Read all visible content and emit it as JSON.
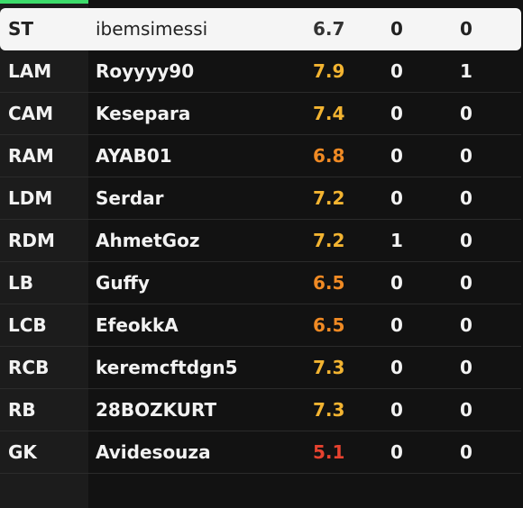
{
  "rating_colors": {
    "neutral_selected": "#333333",
    "yellow": "#f3b431",
    "orange": "#f08a24",
    "red": "#e5422f"
  },
  "accent_color": "#3ddc6b",
  "players": [
    {
      "position": "ST",
      "name": "ibemsimessi",
      "rating": "6.7",
      "goals": "0",
      "assists": "0",
      "rating_color": "#333333",
      "selected": true
    },
    {
      "position": "LAM",
      "name": "Royyyy90",
      "rating": "7.9",
      "goals": "0",
      "assists": "1",
      "rating_color": "#f3b431"
    },
    {
      "position": "CAM",
      "name": "Kesepara",
      "rating": "7.4",
      "goals": "0",
      "assists": "0",
      "rating_color": "#f3b431"
    },
    {
      "position": "RAM",
      "name": "AYAB01",
      "rating": "6.8",
      "goals": "0",
      "assists": "0",
      "rating_color": "#f08a24"
    },
    {
      "position": "LDM",
      "name": "Serdar",
      "rating": "7.2",
      "goals": "0",
      "assists": "0",
      "rating_color": "#f3b431"
    },
    {
      "position": "RDM",
      "name": "AhmetGoz",
      "rating": "7.2",
      "goals": "1",
      "assists": "0",
      "rating_color": "#f3b431"
    },
    {
      "position": "LB",
      "name": "Guffy",
      "rating": "6.5",
      "goals": "0",
      "assists": "0",
      "rating_color": "#f08a24"
    },
    {
      "position": "LCB",
      "name": "EfeokkA",
      "rating": "6.5",
      "goals": "0",
      "assists": "0",
      "rating_color": "#f08a24"
    },
    {
      "position": "RCB",
      "name": "keremcftdgn5",
      "rating": "7.3",
      "goals": "0",
      "assists": "0",
      "rating_color": "#f3b431"
    },
    {
      "position": "RB",
      "name": "28BOZKURT",
      "rating": "7.3",
      "goals": "0",
      "assists": "0",
      "rating_color": "#f3b431"
    },
    {
      "position": "GK",
      "name": "Avidesouza",
      "rating": "5.1",
      "goals": "0",
      "assists": "0",
      "rating_color": "#e5422f"
    }
  ]
}
